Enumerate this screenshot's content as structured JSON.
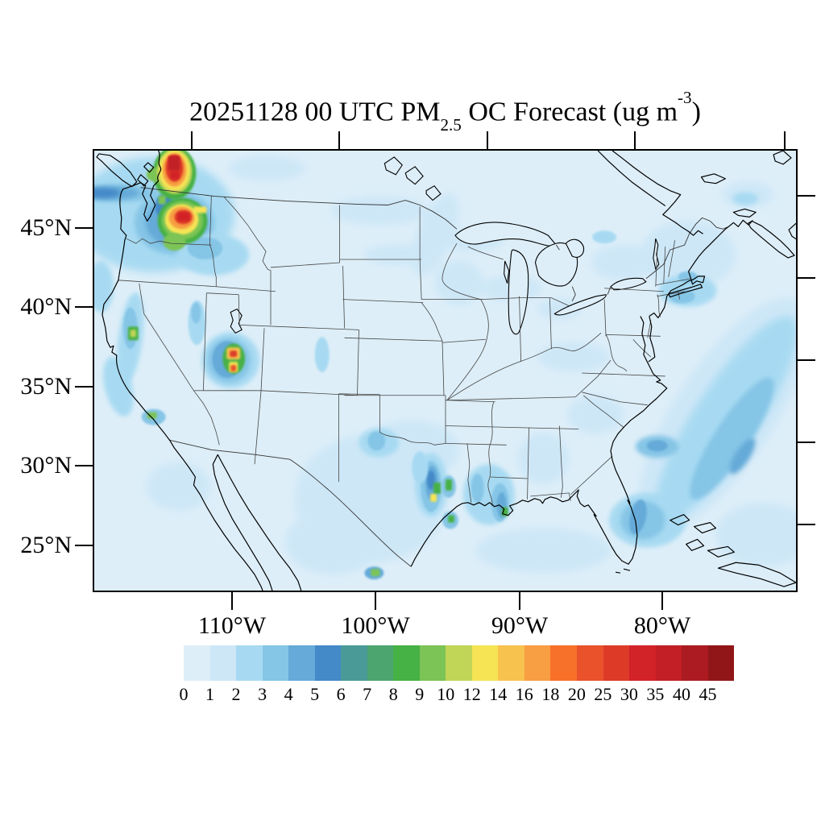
{
  "title": {
    "part1": "20251128 00 UTC PM",
    "sub": "2.5",
    "part2": " OC Forecast (ug m",
    "sup": "-3",
    "part3": ")"
  },
  "axes": {
    "lat_labels": [
      "45°N",
      "40°N",
      "35°N",
      "30°N",
      "25°N"
    ],
    "lon_labels": [
      "110°W",
      "100°W",
      "90°W",
      "80°W"
    ]
  },
  "colorbar": {
    "labels": [
      "0",
      "1",
      "2",
      "3",
      "4",
      "5",
      "6",
      "7",
      "8",
      "9",
      "10",
      "12",
      "14",
      "16",
      "18",
      "20",
      "25",
      "30",
      "35",
      "40",
      "45"
    ],
    "colors": [
      "#ddeef8",
      "#cde7f7",
      "#a7daf2",
      "#85c5e6",
      "#65aad8",
      "#4489c8",
      "#4a9b97",
      "#4ca56f",
      "#46b145",
      "#7cc455",
      "#c1d557",
      "#f6e455",
      "#f8c24f",
      "#f89e43",
      "#f7712a",
      "#e9522b",
      "#dd3b28",
      "#d22328",
      "#c22026",
      "#ab1b21",
      "#911618"
    ]
  },
  "chart_data": {
    "type": "heatmap",
    "title": "20251128 00 UTC PM2.5 OC Forecast (ug m-3)",
    "variable": "PM2.5 organic carbon concentration",
    "units": "ug m-3",
    "region": "Continental United States with southern Canada and northern Mexico",
    "x_tick_labels": [
      "110°W",
      "100°W",
      "90°W",
      "80°W"
    ],
    "y_tick_labels": [
      "45°N",
      "40°N",
      "35°N",
      "30°N",
      "25°N"
    ],
    "colorbar_levels": [
      0,
      1,
      2,
      3,
      4,
      5,
      6,
      7,
      8,
      9,
      10,
      12,
      14,
      16,
      18,
      20,
      25,
      30,
      35,
      40,
      45
    ],
    "colorbar_colors": [
      "#ddeef8",
      "#cde7f7",
      "#a7daf2",
      "#85c5e6",
      "#65aad8",
      "#4489c8",
      "#4a9b97",
      "#4ca56f",
      "#46b145",
      "#7cc455",
      "#c1d557",
      "#f6e455",
      "#f8c24f",
      "#f89e43",
      "#f7712a",
      "#e9522b",
      "#dd3b28",
      "#d22328",
      "#c22026",
      "#ab1b21",
      "#911618"
    ],
    "legend_position": "bottom",
    "grid": false,
    "features": [
      {
        "region": "Southern British Columbia / north of Washington border",
        "approx_value_ug_m3": "35-45+",
        "note": "most intense hotspot, dark red core"
      },
      {
        "region": "Central Washington (Cascades)",
        "approx_value_ug_m3": "30-45",
        "note": "large hotspot with red core, orange/yellow/green rings"
      },
      {
        "region": "Pacific offshore band west of Washington",
        "approx_value_ug_m3": "4-6",
        "note": "dark blue plume extending to map edge"
      },
      {
        "region": "Northern Utah (Salt Lake area)",
        "approx_value_ug_m3": "14-25",
        "note": "compact hotspot, orange/red pixels with green ring"
      },
      {
        "region": "Northern California Sierra foothills",
        "approx_value_ug_m3": "8-10",
        "note": "small green spot in blue band"
      },
      {
        "region": "Los Angeles basin",
        "approx_value_ug_m3": "8-9",
        "note": "small green spot"
      },
      {
        "region": "Houston, Texas",
        "approx_value_ug_m3": "8-14",
        "note": "vertical streaks with green and yellow pixels"
      },
      {
        "region": "Texas coast near Victoria",
        "approx_value_ug_m3": "8",
        "note": "green pixel"
      },
      {
        "region": "Louisiana / New Orleans",
        "approx_value_ug_m3": "5-8",
        "note": "blue streaks with green pixels"
      },
      {
        "region": "Monterrey, Mexico",
        "approx_value_ug_m3": "8-9",
        "note": "green-core spot"
      },
      {
        "region": "West/central Texas and Oklahoma",
        "approx_value_ug_m3": "1-3",
        "note": "broad pale blue area"
      },
      {
        "region": "Atlantic offshore band (Carolinas to Florida)",
        "approx_value_ug_m3": "2-4",
        "note": "diagonal band"
      },
      {
        "region": "South Florida",
        "approx_value_ug_m3": "3-4",
        "note": "patch along east coast"
      },
      {
        "region": "NYC / Long Island Sound / southern New England",
        "approx_value_ug_m3": "2-3",
        "note": "small patches"
      },
      {
        "region": "Background CONUS",
        "approx_value_ug_m3": "0-1",
        "note": "very light blue"
      }
    ]
  }
}
